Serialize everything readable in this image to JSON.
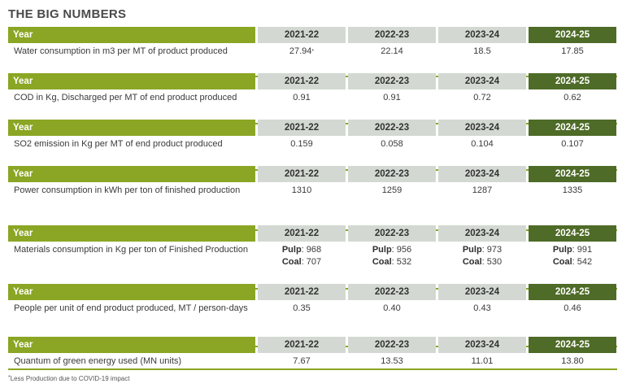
{
  "title": "THE BIG NUMBERS",
  "header_label": "Year",
  "years": [
    "2021-22",
    "2022-23",
    "2023-24",
    "2024-25"
  ],
  "metrics": [
    {
      "label": "Water consumption in m3 per MT of product produced",
      "values": [
        "27.94",
        "22.14",
        "18.5",
        "17.85"
      ],
      "first_note": "*"
    },
    {
      "label": "COD in Kg, Discharged per MT of end product produced",
      "values": [
        "0.91",
        "0.91",
        "0.72",
        "0.62"
      ]
    },
    {
      "label": "SO2 emission in Kg per MT of end product produced",
      "values": [
        "0.159",
        "0.058",
        "0.104",
        "0.107"
      ]
    },
    {
      "label": "Power consumption in kWh per ton of finished production",
      "values": [
        "1310",
        "1259",
        "1287",
        "1335"
      ]
    },
    {
      "label": "Materials consumption in Kg per ton of Finished Production",
      "pulp_label": "Pulp",
      "coal_label": "Coal",
      "pulp": [
        "968",
        "956",
        "973",
        "991"
      ],
      "coal": [
        "707",
        "532",
        "530",
        "542"
      ]
    },
    {
      "label": "People per unit of end product produced, MT / person-days",
      "values": [
        "0.35",
        "0.40",
        "0.43",
        "0.46"
      ]
    },
    {
      "label": "Quantum of green energy used (MN units)",
      "values": [
        "7.67",
        "13.53",
        "11.01",
        "13.80"
      ]
    }
  ],
  "footnote_mark": "*",
  "footnote": "Less Production due to COVID-19 impact"
}
